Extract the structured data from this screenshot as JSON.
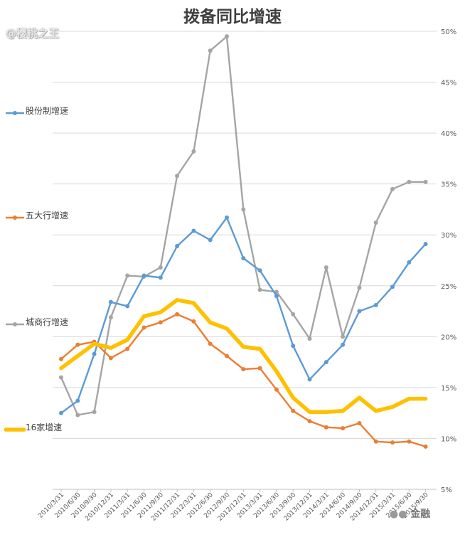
{
  "watermark_top": "@樱桃之王",
  "watermark_bottom": "金融",
  "chart_data": {
    "type": "line",
    "title": "拨备同比增速",
    "xlabel": "",
    "ylabel": "",
    "ylim": [
      0.05,
      0.5
    ],
    "y_ticks": [
      "5%",
      "10%",
      "15%",
      "20%",
      "25%",
      "30%",
      "35%",
      "40%",
      "45%",
      "50%"
    ],
    "y_axis_position": "right",
    "grid": true,
    "legend_position": "left",
    "categories": [
      "2010/3/31",
      "2010/6/30",
      "2010/9/30",
      "2010/12/31",
      "2011/3/31",
      "2011/6/30",
      "2011/9/30",
      "2011/12/31",
      "2012/3/31",
      "2012/6/30",
      "2012/9/30",
      "2012/12/31",
      "2013/3/31",
      "2013/6/30",
      "2013/9/30",
      "2013/12/31",
      "2014/3/31",
      "2014/6/30",
      "2014/9/30",
      "2014/12/31",
      "2015/3/31",
      "2015/6/30",
      "2015/9/30"
    ],
    "series": [
      {
        "name": "股份制增速",
        "color": "#5b9bd5",
        "width": 2.4,
        "values": [
          0.125,
          0.137,
          0.183,
          0.234,
          0.23,
          0.26,
          0.258,
          0.289,
          0.304,
          0.295,
          0.317,
          0.277,
          0.265,
          0.24,
          0.191,
          0.158,
          0.175,
          0.192,
          0.225,
          0.231,
          0.249,
          0.273,
          0.291
        ]
      },
      {
        "name": "五大行增速",
        "color": "#ed7d31",
        "width": 2.4,
        "values": [
          0.178,
          0.192,
          0.195,
          0.179,
          0.188,
          0.209,
          0.214,
          0.222,
          0.215,
          0.193,
          0.181,
          0.168,
          0.169,
          0.148,
          0.127,
          0.117,
          0.111,
          0.11,
          0.115,
          0.097,
          0.096,
          0.097,
          0.092
        ]
      },
      {
        "name": "城商行增速",
        "color": "#a5a5a5",
        "width": 2.4,
        "values": [
          0.16,
          0.123,
          0.126,
          0.219,
          0.26,
          0.259,
          0.268,
          0.358,
          0.382,
          0.481,
          0.495,
          0.325,
          0.246,
          0.244,
          0.222,
          0.198,
          0.268,
          0.2,
          0.248,
          0.312,
          0.345,
          0.352,
          0.352
        ]
      },
      {
        "name": "16家增速",
        "color": "#ffc000",
        "width": 5.5,
        "values": [
          0.169,
          0.181,
          0.193,
          0.189,
          0.197,
          0.22,
          0.224,
          0.236,
          0.233,
          0.214,
          0.208,
          0.19,
          0.188,
          0.166,
          0.14,
          0.126,
          0.126,
          0.127,
          0.14,
          0.127,
          0.131,
          0.139,
          0.139
        ]
      }
    ]
  }
}
